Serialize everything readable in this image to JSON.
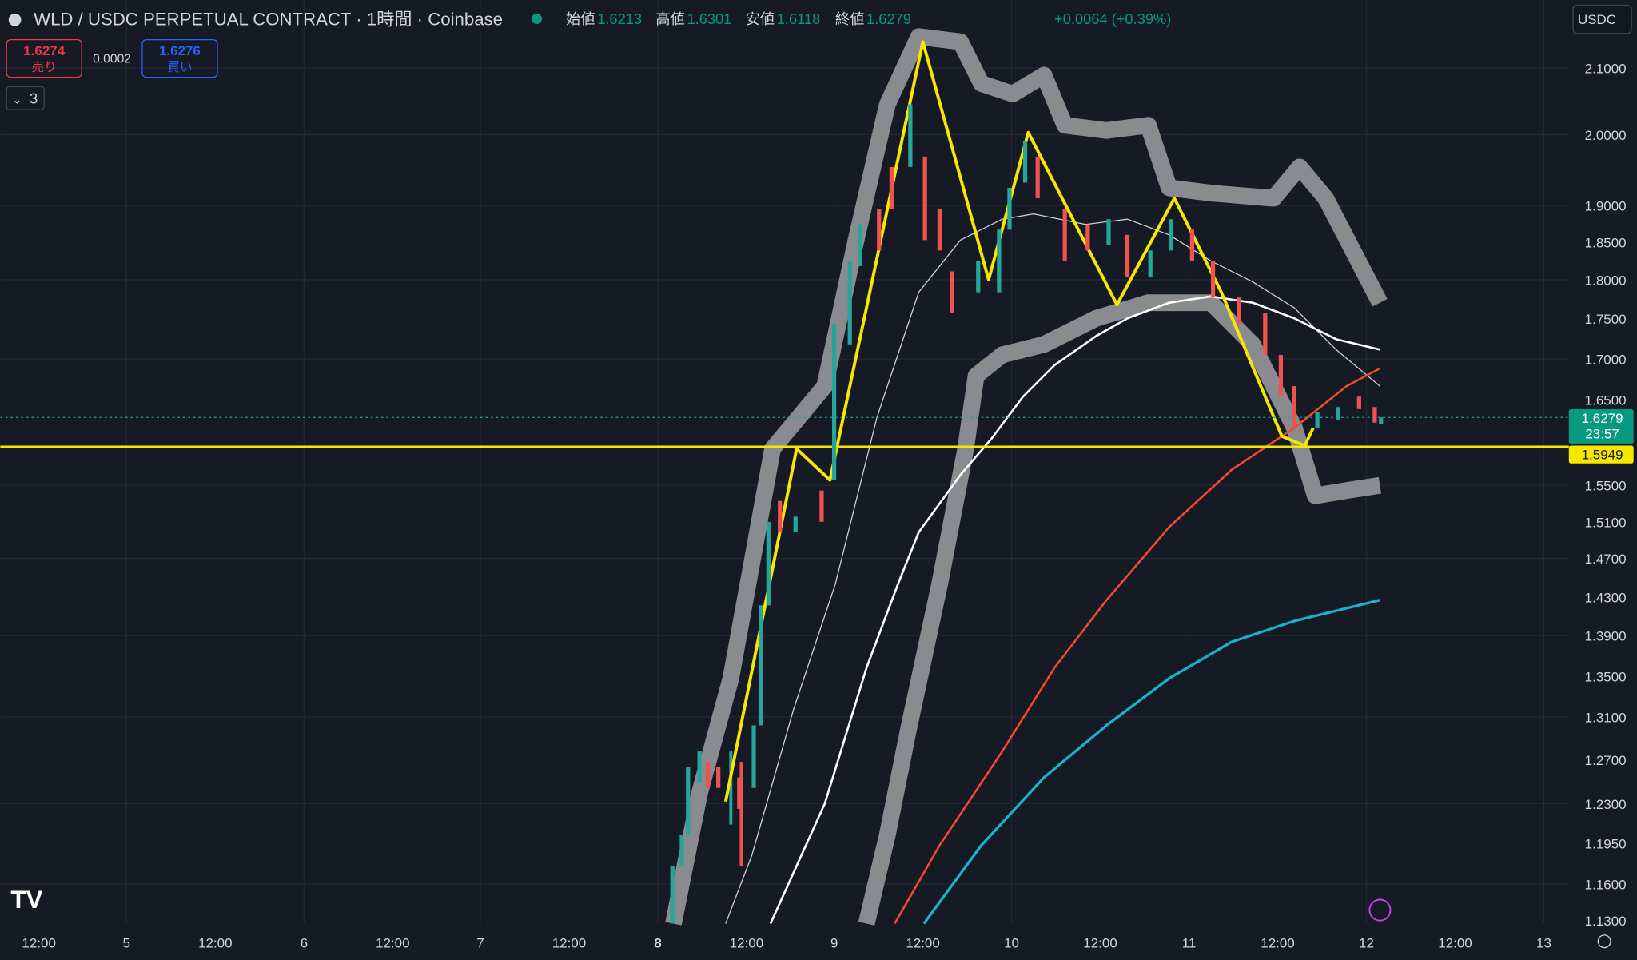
{
  "header": {
    "symbol": "WLD / USDC PERPETUAL CONTRACT · 1時間 · Coinbase",
    "ohlc": [
      {
        "label": "始値",
        "value": "1.6213"
      },
      {
        "label": "高値",
        "value": "1.6301"
      },
      {
        "label": "安値",
        "value": "1.6118"
      },
      {
        "label": "終値",
        "value": "1.6279"
      }
    ],
    "change": "+0.0064 (+0.39%)",
    "currency": "USDC"
  },
  "order": {
    "sell": "1.6274",
    "sell_label": "売り",
    "spread": "0.0002",
    "buy": "1.6276",
    "buy_label": "買い"
  },
  "indicators_count": "3",
  "price_axis": {
    "ticks": [
      "2.1000",
      "2.0000",
      "1.9000",
      "1.8500",
      "1.8000",
      "1.7500",
      "1.7000",
      "1.6500",
      "1.5500",
      "1.5100",
      "1.4700",
      "1.4300",
      "1.3900",
      "1.3500",
      "1.3100",
      "1.2700",
      "1.2300",
      "1.1950",
      "1.1600",
      "1.1300"
    ]
  },
  "price_tags": {
    "last": "1.6279",
    "countdown": "23:57",
    "level": "1.5949"
  },
  "time_axis": {
    "labels": [
      "12:00",
      "5",
      "12:00",
      "6",
      "12:00",
      "7",
      "12:00",
      "8",
      "12:00",
      "9",
      "12:00",
      "10",
      "12:00",
      "11",
      "12:00",
      "12",
      "12:00",
      "13"
    ]
  }
}
